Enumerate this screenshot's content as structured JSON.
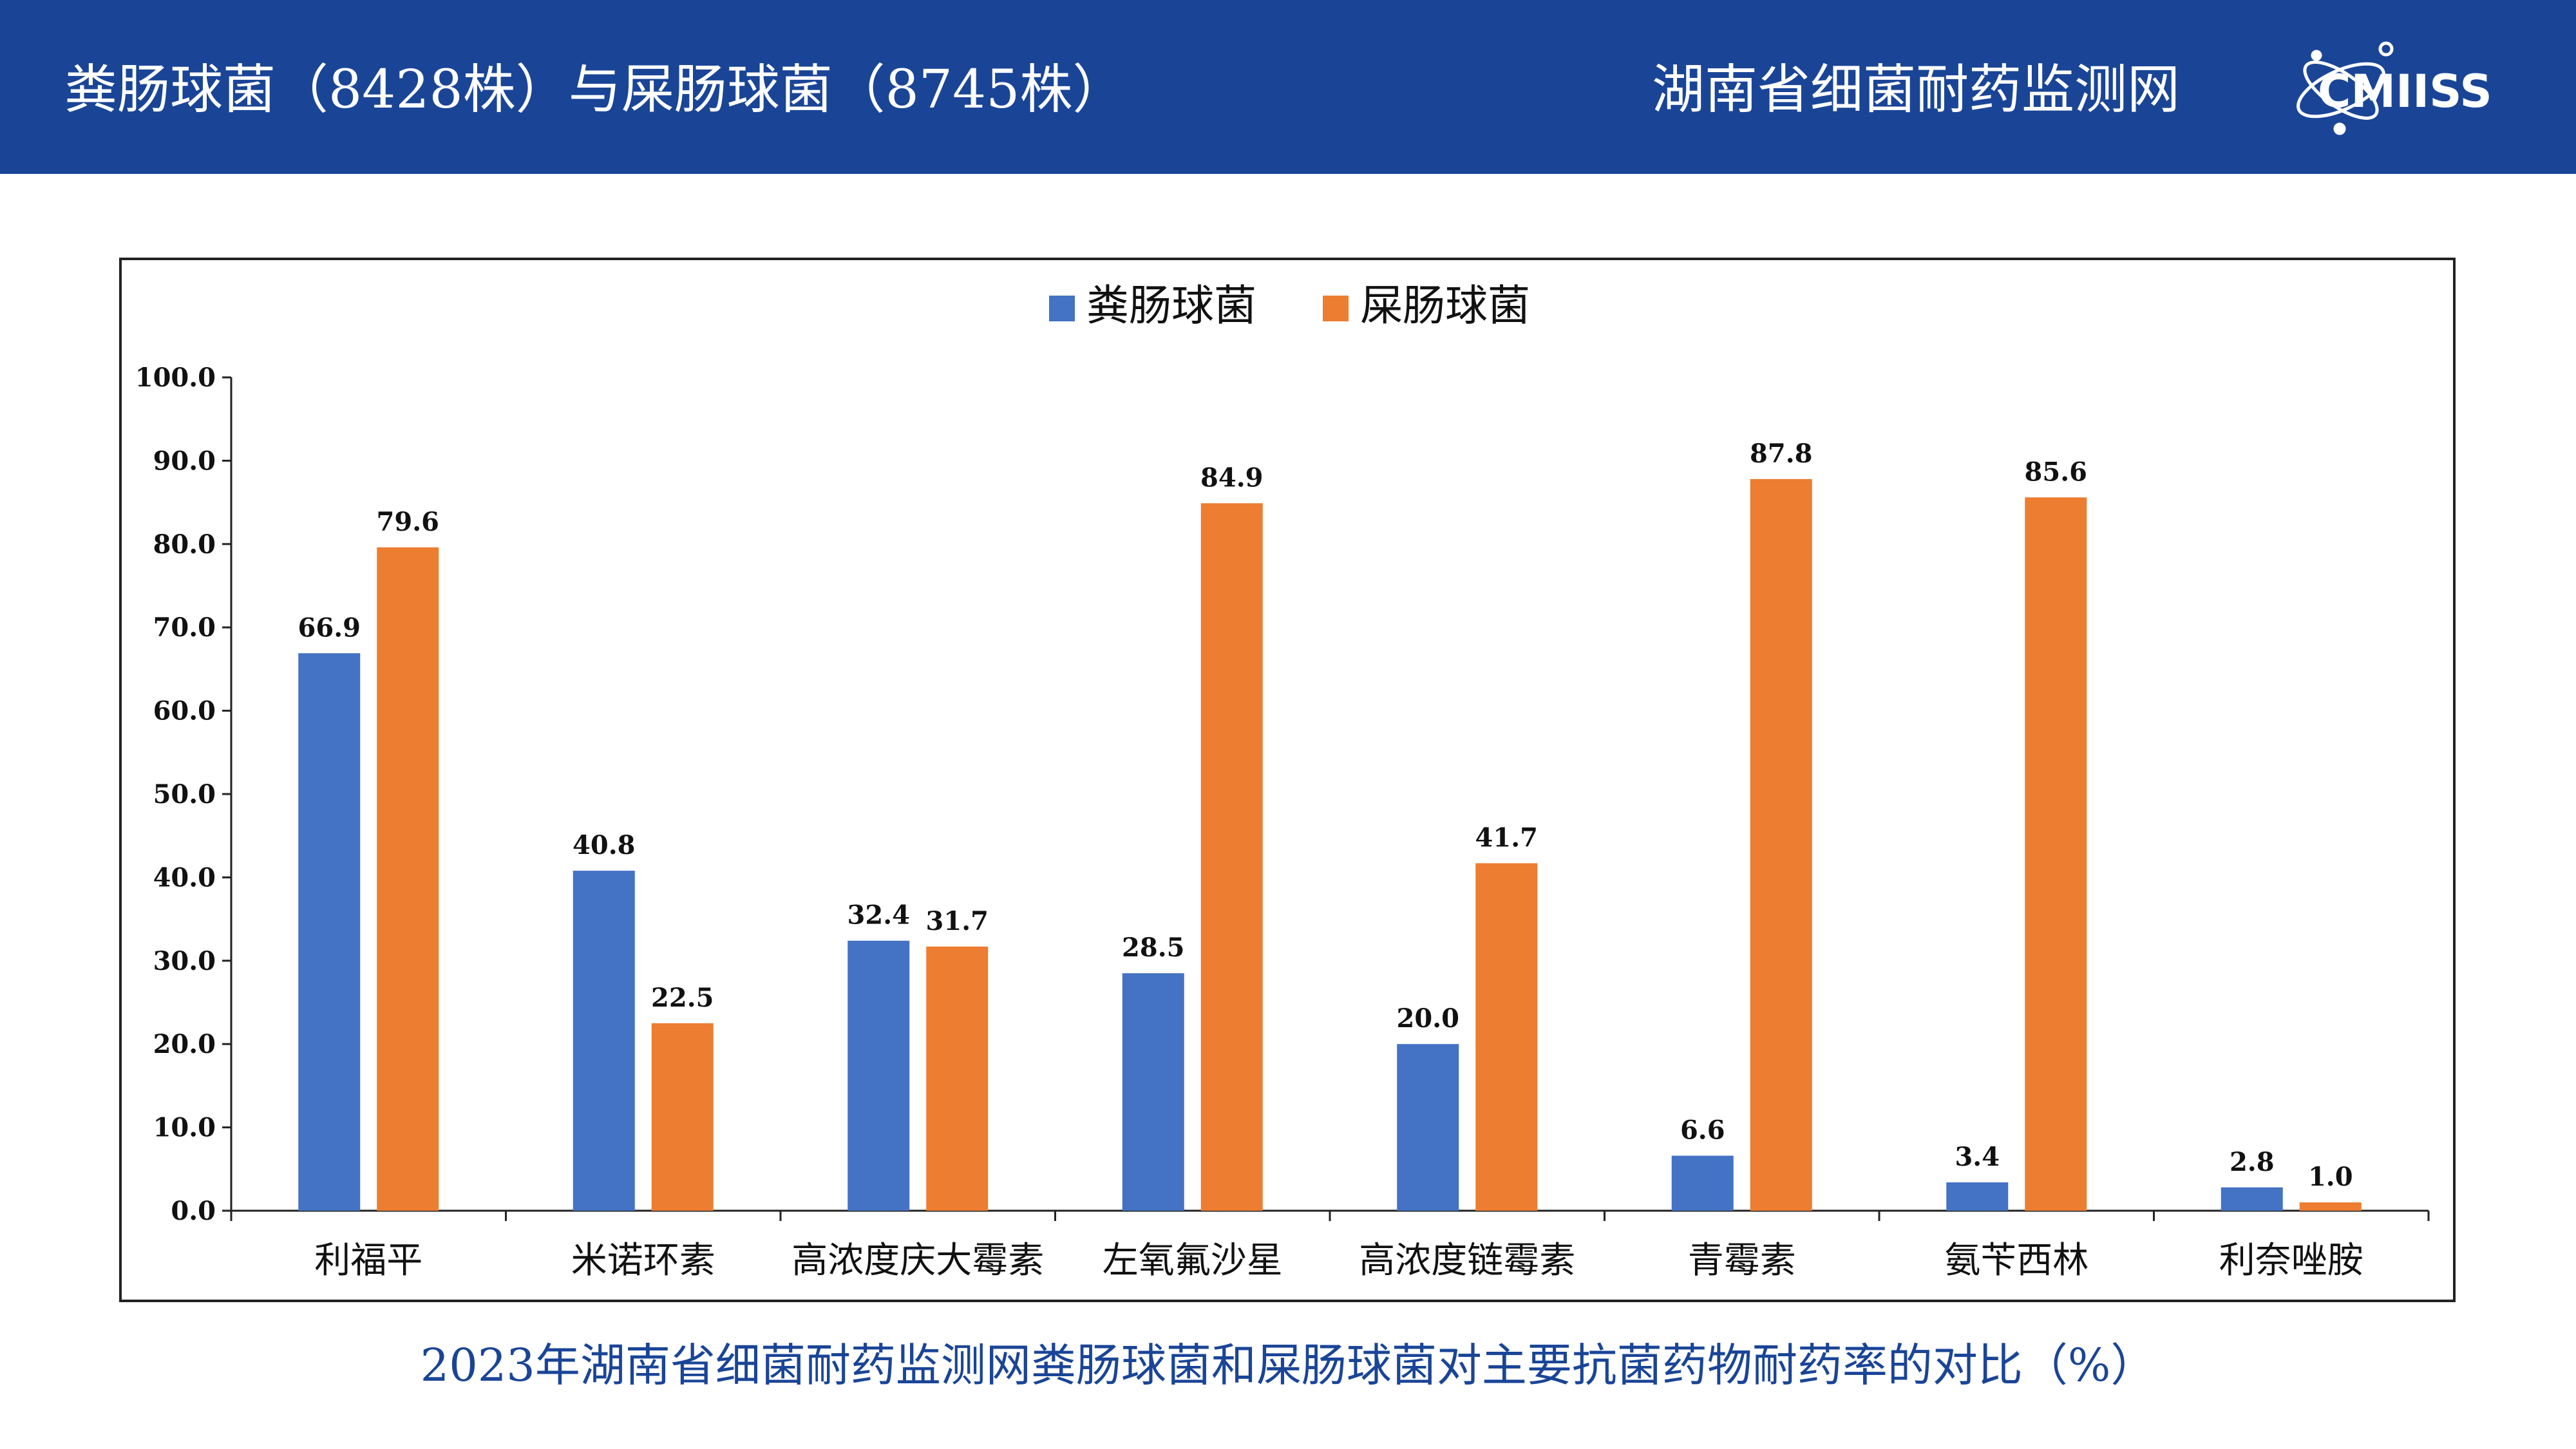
{
  "header": {
    "title": "粪肠球菌（8428株）与屎肠球菌（8745株）",
    "network": "湖南省细菌耐药监测网",
    "logo_text": "CMIISS",
    "background": "#1a4597"
  },
  "caption": "2023年湖南省细菌耐药监测网粪肠球菌和屎肠球菌对主要抗菌药物耐药率的对比（%）",
  "chart_data": {
    "type": "bar",
    "categories": [
      "利福平",
      "米诺环素",
      "高浓度庆大霉素",
      "左氧氟沙星",
      "高浓度链霉素",
      "青霉素",
      "氨苄西林",
      "利奈唑胺"
    ],
    "series": [
      {
        "name": "粪肠球菌",
        "color": "#4472c4",
        "values": [
          66.9,
          40.8,
          32.4,
          28.5,
          20.0,
          6.6,
          3.4,
          2.8
        ]
      },
      {
        "name": "屎肠球菌",
        "color": "#ed7d31",
        "values": [
          79.6,
          22.5,
          31.7,
          84.9,
          41.7,
          87.8,
          85.6,
          1.0
        ]
      }
    ],
    "ylim": [
      0,
      100
    ],
    "yticks": [
      "0.0",
      "10.0",
      "20.0",
      "30.0",
      "40.0",
      "50.0",
      "60.0",
      "70.0",
      "80.0",
      "90.0",
      "100.0"
    ],
    "legend_position": "top-center",
    "grid": false
  }
}
